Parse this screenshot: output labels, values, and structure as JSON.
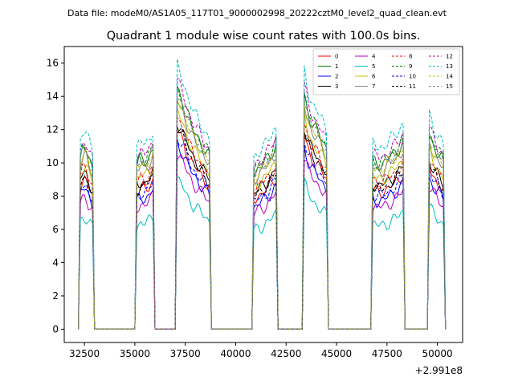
{
  "header": {
    "data_file": "Data file: modeM0/AS1A05_117T01_9000002998_20222cztM0_level2_quad_clean.evt"
  },
  "chart_data": {
    "type": "line",
    "title": "Quadrant 1 module wise count rates with 100.0s bins.",
    "xlabel": "",
    "ylabel": "",
    "x_offset_label": "+2.991e8",
    "xlim": [
      31500,
      51250
    ],
    "ylim": [
      -0.8,
      17.0
    ],
    "xticks": [
      32500,
      35000,
      37500,
      40000,
      42500,
      45000,
      47500,
      50000
    ],
    "xtick_labels": [
      "32500",
      "35000",
      "37500",
      "40000",
      "42500",
      "45000",
      "47500",
      "50000"
    ],
    "yticks": [
      0,
      2,
      4,
      6,
      8,
      10,
      12,
      14,
      16
    ],
    "ytick_labels": [
      "0",
      "2",
      "4",
      "6",
      "8",
      "10",
      "12",
      "14",
      "16"
    ],
    "legend_position": "top-right",
    "legend_columns": 4,
    "orbit_segments": [
      {
        "start": 32300,
        "end": 32900,
        "rise": [
          10.5,
          11.0,
          10.8,
          10.2,
          9.8
        ],
        "relative": [
          1.0,
          1.0,
          1.0,
          1.0,
          0.9
        ]
      },
      {
        "start": 35100,
        "end": 35900,
        "rise": [
          10.0,
          10.3,
          10.2,
          10.5,
          11.0
        ]
      },
      {
        "start": 37100,
        "end": 38700,
        "rise": [
          14.5,
          13.8,
          12.8,
          12.0,
          11.5,
          11.0,
          10.5
        ]
      },
      {
        "start": 40900,
        "end": 42000,
        "rise": [
          9.5,
          9.8,
          10.0,
          10.3,
          10.7,
          11.2
        ]
      },
      {
        "start": 43400,
        "end": 44500,
        "rise": [
          14.2,
          13.0,
          12.4,
          12.0,
          11.5,
          11.0
        ]
      },
      {
        "start": 46800,
        "end": 48300,
        "rise": [
          10.2,
          10.0,
          10.1,
          10.3,
          10.6,
          10.9,
          11.4
        ]
      },
      {
        "start": 49600,
        "end": 50350,
        "rise": [
          11.8,
          11.2,
          10.8,
          10.5,
          10.0
        ]
      }
    ],
    "series": [
      {
        "name": "0",
        "color": "#ff0000",
        "dash": "solid",
        "scale": 0.82
      },
      {
        "name": "1",
        "color": "#008000",
        "dash": "solid",
        "scale": 0.99
      },
      {
        "name": "2",
        "color": "#0000ff",
        "dash": "solid",
        "scale": 0.77
      },
      {
        "name": "3",
        "color": "#000000",
        "dash": "solid",
        "scale": 0.86
      },
      {
        "name": "4",
        "color": "#bf00bf",
        "dash": "solid",
        "scale": 0.73
      },
      {
        "name": "5",
        "color": "#00bfbf",
        "dash": "solid",
        "scale": 0.62
      },
      {
        "name": "6",
        "color": "#bfbf00",
        "dash": "solid",
        "scale": 0.9
      },
      {
        "name": "7",
        "color": "#808080",
        "dash": "solid",
        "scale": 0.95
      },
      {
        "name": "8",
        "color": "#ff0000",
        "dash": "dashed",
        "scale": 0.88
      },
      {
        "name": "9",
        "color": "#008000",
        "dash": "dashed",
        "scale": 1.0
      },
      {
        "name": "10",
        "color": "#0000ff",
        "dash": "dashed",
        "scale": 0.8
      },
      {
        "name": "11",
        "color": "#000000",
        "dash": "dashed",
        "scale": 0.84
      },
      {
        "name": "12",
        "color": "#bf00bf",
        "dash": "dashed",
        "scale": 1.03
      },
      {
        "name": "13",
        "color": "#00bfbf",
        "dash": "dashed",
        "scale": 1.09
      },
      {
        "name": "14",
        "color": "#bfbf00",
        "dash": "dashed",
        "scale": 0.96
      },
      {
        "name": "15",
        "color": "#808080",
        "dash": "dashed",
        "scale": 0.98
      }
    ]
  }
}
